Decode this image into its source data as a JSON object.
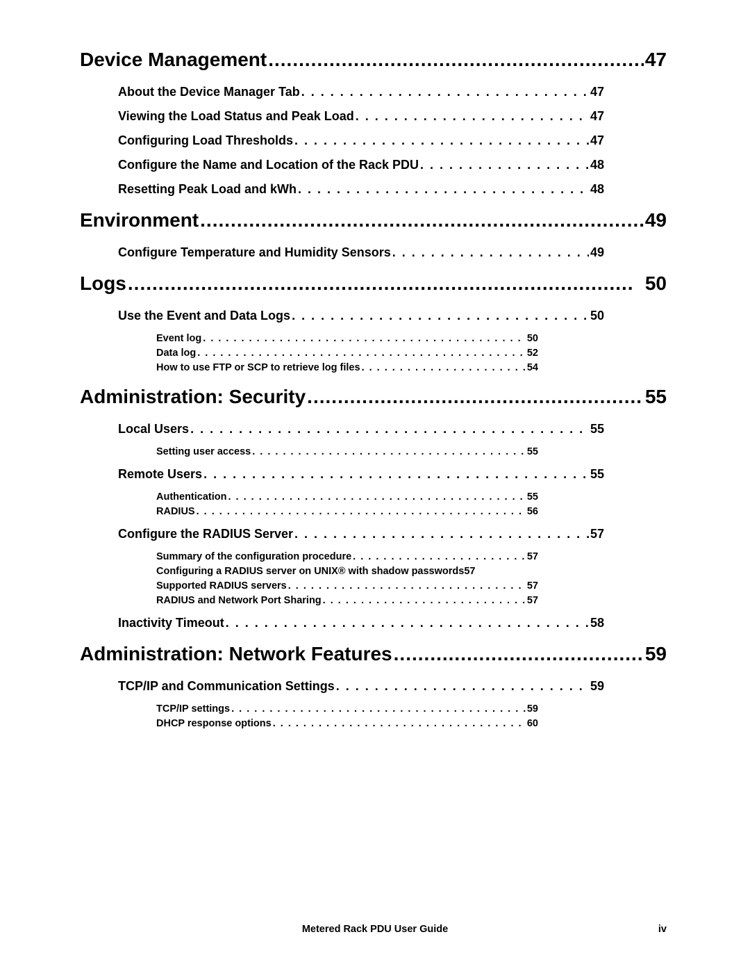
{
  "sections": [
    {
      "title": "Device Management",
      "page": "47",
      "subsections": [
        {
          "title": "About the Device Manager Tab",
          "page": "47"
        },
        {
          "title": "Viewing the Load Status and Peak Load",
          "page": "47"
        },
        {
          "title": "Configuring Load Thresholds",
          "page": "47"
        },
        {
          "title": "Configure the Name and Location of the Rack PDU",
          "page": "48"
        },
        {
          "title": "Resetting Peak Load and kWh",
          "page": "48"
        }
      ]
    },
    {
      "title": "Environment",
      "page": "49",
      "subsections": [
        {
          "title": "Configure Temperature and Humidity Sensors",
          "page": "49"
        }
      ]
    },
    {
      "title": "Logs",
      "page": "50",
      "subsections": [
        {
          "title": "Use the Event and Data Logs",
          "page": "50",
          "subsubs": [
            {
              "title": "Event log",
              "page": "50"
            },
            {
              "title": "Data log",
              "page": "52"
            },
            {
              "title": "How to use FTP or SCP to retrieve log files",
              "page": "54"
            }
          ]
        }
      ]
    },
    {
      "title": "Administration: Security",
      "page": "55",
      "subsections": [
        {
          "title": "Local Users",
          "page": "55",
          "subsubs": [
            {
              "title": "Setting user access",
              "page": "55"
            }
          ]
        },
        {
          "title": "Remote Users",
          "page": "55",
          "subsubs": [
            {
              "title": "Authentication",
              "page": "55"
            },
            {
              "title": "RADIUS",
              "page": "56"
            }
          ]
        },
        {
          "title": "Configure the RADIUS Server",
          "page": "57",
          "subsubs": [
            {
              "title": "Summary of the configuration procedure",
              "page": "57"
            },
            {
              "title": "Configuring a RADIUS server on UNIX® with shadow passwords",
              "page": "57",
              "noleader": true
            },
            {
              "title": "Supported RADIUS servers",
              "page": "57"
            },
            {
              "title": "RADIUS and Network Port Sharing",
              "page": "57"
            }
          ]
        },
        {
          "title": "Inactivity Timeout",
          "page": "58"
        }
      ]
    },
    {
      "title": "Administration: Network Features",
      "page": "59",
      "subsections": [
        {
          "title": "TCP/IP and Communication Settings",
          "page": "59",
          "subsubs": [
            {
              "title": "TCP/IP settings",
              "page": "59"
            },
            {
              "title": "DHCP response options",
              "page": "60"
            }
          ]
        }
      ]
    }
  ],
  "footer": {
    "title": "Metered Rack PDU User Guide",
    "page": "iv"
  }
}
